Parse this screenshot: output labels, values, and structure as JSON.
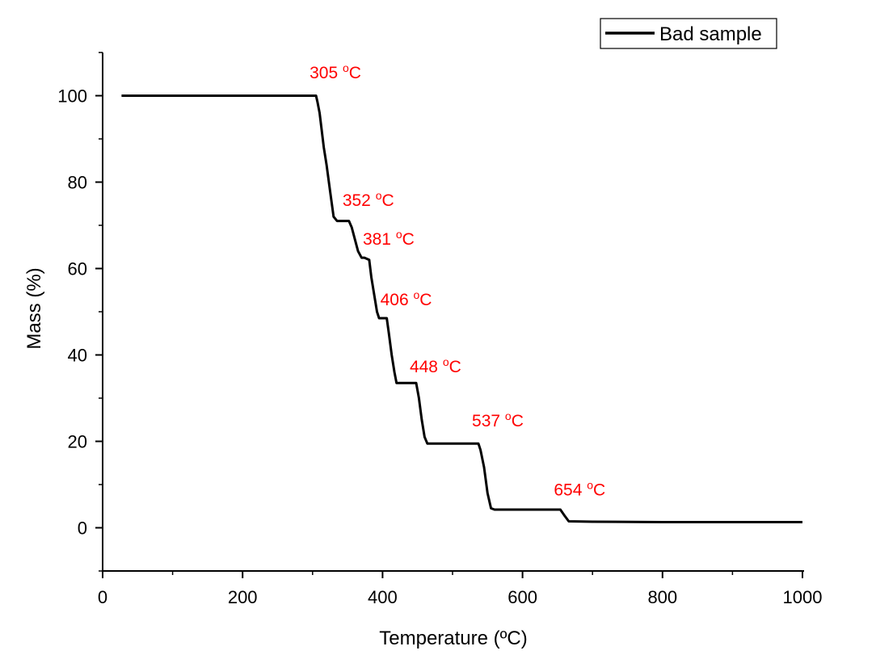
{
  "chart_data": {
    "type": "line",
    "title": "",
    "xlabel": "Temperature (ºC)",
    "ylabel": "Mass (%)",
    "xlim": [
      0,
      1000
    ],
    "ylim": [
      -10,
      110
    ],
    "x_ticks": [
      0,
      200,
      400,
      600,
      800,
      1000
    ],
    "y_ticks": [
      0,
      20,
      40,
      60,
      80,
      100
    ],
    "x_tick_labels": [
      "0",
      "200",
      "400",
      "600",
      "800",
      "1000"
    ],
    "y_tick_labels": [
      "0",
      "20",
      "40",
      "60",
      "80",
      "100"
    ],
    "grid": false,
    "legend": {
      "position": "top-right",
      "entries": [
        "Bad sample"
      ]
    },
    "series": [
      {
        "name": "Bad sample",
        "color": "#000000",
        "x": [
          27,
          300,
          305,
          307,
          310,
          313,
          316,
          320,
          325,
          330,
          335,
          340,
          345,
          352,
          356,
          360,
          365,
          370,
          374,
          381,
          384,
          388,
          392,
          395,
          399,
          406,
          409,
          413,
          417,
          420,
          425,
          432,
          448,
          452,
          456,
          460,
          464,
          470,
          520,
          537,
          540,
          545,
          550,
          555,
          560,
          600,
          640,
          654,
          660,
          666,
          700,
          800,
          900,
          1000
        ],
        "y": [
          100,
          100,
          100,
          98.5,
          96,
          92,
          88,
          84,
          78,
          72,
          71,
          71,
          71,
          71,
          69.5,
          67,
          64,
          62.5,
          62.5,
          62,
          58,
          54,
          50,
          48.5,
          48.5,
          48.5,
          45,
          40,
          36,
          33.5,
          33.5,
          33.5,
          33.5,
          30,
          25,
          21,
          19.5,
          19.5,
          19.5,
          19.5,
          18,
          14,
          8,
          4.5,
          4.2,
          4.2,
          4.2,
          4.2,
          2.8,
          1.5,
          1.4,
          1.3,
          1.3,
          1.3
        ]
      }
    ],
    "annotations": [
      {
        "text": "305 ",
        "sup": "o",
        "unit": "C",
        "x": 305,
        "y": 104
      },
      {
        "text": "352 ",
        "sup": "o",
        "unit": "C",
        "x": 352,
        "y": 74.5
      },
      {
        "text": "381 ",
        "sup": "o",
        "unit": "C",
        "x": 381,
        "y": 65.5
      },
      {
        "text": "406 ",
        "sup": "o",
        "unit": "C",
        "x": 406,
        "y": 51.5
      },
      {
        "text": "448 ",
        "sup": "o",
        "unit": "C",
        "x": 448,
        "y": 36
      },
      {
        "text": "537 ",
        "sup": "o",
        "unit": "C",
        "x": 537,
        "y": 23.5
      },
      {
        "text": "654 ",
        "sup": "o",
        "unit": "C",
        "x": 654,
        "y": 7.5
      }
    ]
  }
}
